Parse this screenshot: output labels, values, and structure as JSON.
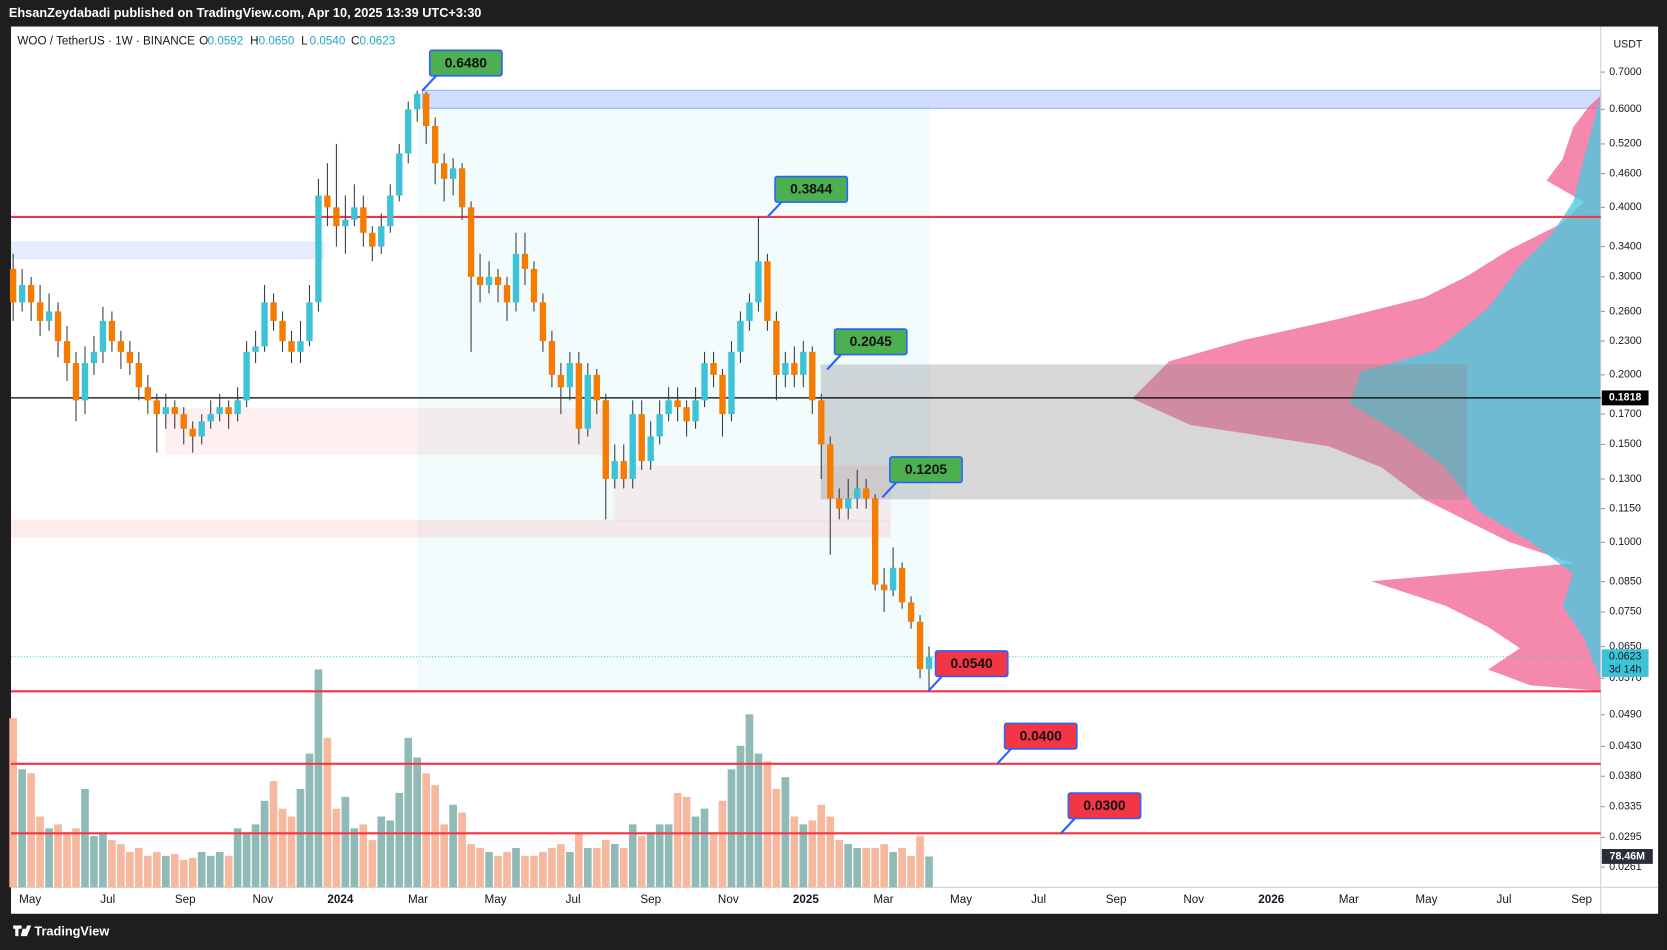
{
  "publisher": "EhsanZeydabadi published on TradingView.com, Apr 10, 2025 13:39 UTC+3:30",
  "footer": "TradingView",
  "chart_data": {
    "type": "candlestick",
    "title": "WOO / TetherUS · 1W · BINANCE",
    "ohlc_legend": [
      {
        "key": "O",
        "text": "0.0592"
      },
      {
        "key": "H",
        "text": "0.0650"
      },
      {
        "key": "L",
        "text": "0.0540"
      },
      {
        "key": "C",
        "text": "0.0623"
      }
    ],
    "y_unit": "USDT",
    "yscale": "log",
    "ylim": [
      0.024,
      0.845
    ],
    "yticks": [
      {
        "value": 0.7,
        "label": "0.7000"
      },
      {
        "value": 0.6,
        "label": "0.6000"
      },
      {
        "value": 0.52,
        "label": "0.5200"
      },
      {
        "value": 0.46,
        "label": "0.4600"
      },
      {
        "value": 0.4,
        "label": "0.4000"
      },
      {
        "value": 0.34,
        "label": "0.3400"
      },
      {
        "value": 0.3,
        "label": "0.3000"
      },
      {
        "value": 0.26,
        "label": "0.2600"
      },
      {
        "value": 0.23,
        "label": "0.2300"
      },
      {
        "value": 0.2,
        "label": "0.2000"
      },
      {
        "value": 0.17,
        "label": "0.1700"
      },
      {
        "value": 0.15,
        "label": "0.1500"
      },
      {
        "value": 0.13,
        "label": "0.1300"
      },
      {
        "value": 0.115,
        "label": "0.1150"
      },
      {
        "value": 0.1,
        "label": "0.1000"
      },
      {
        "value": 0.085,
        "label": "0.0850"
      },
      {
        "value": 0.075,
        "label": "0.0750"
      },
      {
        "value": 0.065,
        "label": "0.0650"
      },
      {
        "value": 0.057,
        "label": "0.0570"
      },
      {
        "value": 0.049,
        "label": "0.0490"
      },
      {
        "value": 0.043,
        "label": "0.0430"
      },
      {
        "value": 0.038,
        "label": "0.0380"
      },
      {
        "value": 0.0335,
        "label": "0.0335"
      },
      {
        "value": 0.0295,
        "label": "0.0295"
      },
      {
        "value": 0.0261,
        "label": "0.0261"
      }
    ],
    "time_labels": [
      "May",
      "Jul",
      "Sep",
      "Nov",
      "2024",
      "Mar",
      "May",
      "Jul",
      "Sep",
      "Nov",
      "2025",
      "Mar",
      "May",
      "Jul",
      "Sep",
      "Nov",
      "2026",
      "Mar",
      "May",
      "Jul",
      "Sep"
    ],
    "up_color": "#3ec3d6",
    "down_color": "#f57c00",
    "volume_up_color": "#8fbab6",
    "volume_down_color": "#f6b89e",
    "open": [
      0.31,
      0.27,
      0.29,
      0.27,
      0.25,
      0.26,
      0.23,
      0.21,
      0.18,
      0.21,
      0.22,
      0.25,
      0.23,
      0.22,
      0.21,
      0.19,
      0.18,
      0.17,
      0.175,
      0.17,
      0.16,
      0.155,
      0.165,
      0.17,
      0.175,
      0.17,
      0.18,
      0.22,
      0.225,
      0.27,
      0.25,
      0.23,
      0.22,
      0.23,
      0.27,
      0.42,
      0.4,
      0.37,
      0.38,
      0.4,
      0.36,
      0.34,
      0.37,
      0.42,
      0.5,
      0.6,
      0.64,
      0.56,
      0.48,
      0.45,
      0.47,
      0.4,
      0.3,
      0.29,
      0.3,
      0.29,
      0.27,
      0.33,
      0.31,
      0.27,
      0.23,
      0.2,
      0.19,
      0.21,
      0.16,
      0.2,
      0.18,
      0.13,
      0.14,
      0.13,
      0.17,
      0.14,
      0.155,
      0.17,
      0.18,
      0.175,
      0.165,
      0.18,
      0.21,
      0.2,
      0.17,
      0.22,
      0.25,
      0.27,
      0.32,
      0.25,
      0.2,
      0.21,
      0.2,
      0.22,
      0.18,
      0.15,
      0.12,
      0.115,
      0.12,
      0.125,
      0.12,
      0.084,
      0.082,
      0.09,
      0.078,
      0.072,
      0.0592
    ],
    "high": [
      0.33,
      0.31,
      0.3,
      0.29,
      0.28,
      0.27,
      0.245,
      0.22,
      0.225,
      0.235,
      0.265,
      0.26,
      0.24,
      0.23,
      0.22,
      0.2,
      0.185,
      0.185,
      0.18,
      0.175,
      0.165,
      0.17,
      0.18,
      0.185,
      0.18,
      0.19,
      0.23,
      0.24,
      0.29,
      0.28,
      0.26,
      0.24,
      0.25,
      0.29,
      0.45,
      0.48,
      0.52,
      0.42,
      0.44,
      0.42,
      0.37,
      0.39,
      0.44,
      0.52,
      0.62,
      0.648,
      0.645,
      0.58,
      0.5,
      0.49,
      0.48,
      0.41,
      0.33,
      0.32,
      0.31,
      0.3,
      0.36,
      0.36,
      0.32,
      0.28,
      0.24,
      0.21,
      0.22,
      0.22,
      0.21,
      0.205,
      0.185,
      0.15,
      0.15,
      0.18,
      0.18,
      0.165,
      0.18,
      0.19,
      0.19,
      0.18,
      0.19,
      0.22,
      0.22,
      0.205,
      0.23,
      0.26,
      0.28,
      0.3844,
      0.33,
      0.26,
      0.22,
      0.225,
      0.23,
      0.225,
      0.185,
      0.155,
      0.125,
      0.13,
      0.135,
      0.13,
      0.122,
      0.09,
      0.098,
      0.092,
      0.08,
      0.074,
      0.065
    ],
    "low": [
      0.25,
      0.26,
      0.25,
      0.235,
      0.24,
      0.215,
      0.195,
      0.165,
      0.17,
      0.2,
      0.21,
      0.22,
      0.205,
      0.2,
      0.18,
      0.17,
      0.145,
      0.16,
      0.16,
      0.15,
      0.145,
      0.15,
      0.16,
      0.165,
      0.16,
      0.165,
      0.175,
      0.21,
      0.22,
      0.24,
      0.22,
      0.21,
      0.21,
      0.225,
      0.26,
      0.37,
      0.34,
      0.33,
      0.37,
      0.34,
      0.32,
      0.33,
      0.36,
      0.41,
      0.48,
      0.57,
      0.52,
      0.44,
      0.41,
      0.42,
      0.38,
      0.22,
      0.27,
      0.28,
      0.27,
      0.25,
      0.26,
      0.29,
      0.26,
      0.22,
      0.19,
      0.17,
      0.18,
      0.15,
      0.155,
      0.17,
      0.11,
      0.125,
      0.125,
      0.125,
      0.135,
      0.135,
      0.15,
      0.165,
      0.165,
      0.155,
      0.16,
      0.175,
      0.19,
      0.155,
      0.165,
      0.21,
      0.24,
      0.26,
      0.24,
      0.18,
      0.19,
      0.19,
      0.19,
      0.17,
      0.13,
      0.095,
      0.11,
      0.11,
      0.115,
      0.115,
      0.082,
      0.075,
      0.08,
      0.076,
      0.07,
      0.057,
      0.054
    ],
    "close": [
      0.27,
      0.29,
      0.27,
      0.25,
      0.26,
      0.23,
      0.21,
      0.18,
      0.21,
      0.22,
      0.25,
      0.23,
      0.22,
      0.21,
      0.19,
      0.18,
      0.17,
      0.175,
      0.17,
      0.16,
      0.155,
      0.165,
      0.17,
      0.175,
      0.17,
      0.18,
      0.22,
      0.225,
      0.27,
      0.25,
      0.23,
      0.22,
      0.23,
      0.27,
      0.42,
      0.4,
      0.37,
      0.38,
      0.4,
      0.36,
      0.34,
      0.37,
      0.42,
      0.5,
      0.6,
      0.64,
      0.56,
      0.48,
      0.45,
      0.47,
      0.4,
      0.3,
      0.29,
      0.3,
      0.29,
      0.27,
      0.33,
      0.31,
      0.27,
      0.23,
      0.2,
      0.19,
      0.21,
      0.16,
      0.2,
      0.18,
      0.13,
      0.14,
      0.13,
      0.17,
      0.14,
      0.155,
      0.17,
      0.18,
      0.175,
      0.165,
      0.18,
      0.21,
      0.2,
      0.17,
      0.22,
      0.25,
      0.27,
      0.32,
      0.25,
      0.2,
      0.21,
      0.2,
      0.22,
      0.18,
      0.15,
      0.12,
      0.115,
      0.12,
      0.125,
      0.12,
      0.084,
      0.082,
      0.09,
      0.078,
      0.072,
      0.0592,
      0.0623
    ],
    "volume": [
      430,
      300,
      290,
      180,
      150,
      160,
      140,
      150,
      250,
      130,
      140,
      120,
      110,
      90,
      100,
      80,
      90,
      80,
      85,
      70,
      75,
      90,
      80,
      90,
      80,
      150,
      140,
      160,
      220,
      270,
      200,
      180,
      250,
      340,
      554,
      380,
      200,
      230,
      150,
      160,
      120,
      180,
      170,
      240,
      380,
      330,
      290,
      260,
      160,
      210,
      190,
      110,
      100,
      90,
      80,
      90,
      100,
      80,
      80,
      90,
      100,
      110,
      90,
      140,
      100,
      100,
      120,
      110,
      100,
      160,
      130,
      140,
      160,
      160,
      240,
      230,
      180,
      200,
      140,
      220,
      300,
      360,
      440,
      340,
      320,
      250,
      280,
      180,
      160,
      170,
      210,
      180,
      120,
      110,
      100,
      100,
      100,
      110,
      90,
      100,
      80,
      130,
      78.46
    ],
    "volume_label": "78.46M",
    "last_price": {
      "value": 0.0623,
      "label": "0.0623",
      "countdown": "3d 14h"
    },
    "hlines": [
      {
        "value": 0.3844,
        "color": "#f23645"
      },
      {
        "value": 0.1818,
        "color": "#000000",
        "label": "0.1818"
      },
      {
        "value": 0.054,
        "color": "#f23645"
      },
      {
        "value": 0.04,
        "color": "#f23645"
      },
      {
        "value": 0.03,
        "color": "#f23645"
      }
    ],
    "annotations": [
      {
        "value": 0.648,
        "label": "0.6480",
        "color": "#4caf50"
      },
      {
        "value": 0.3844,
        "label": "0.3844",
        "color": "#4caf50"
      },
      {
        "value": 0.2045,
        "label": "0.2045",
        "color": "#4caf50"
      },
      {
        "value": 0.1205,
        "label": "0.1205",
        "color": "#4caf50"
      },
      {
        "value": 0.054,
        "label": "0.0540",
        "color": "#f23645"
      },
      {
        "value": 0.04,
        "label": "0.0400",
        "color": "#f23645"
      },
      {
        "value": 0.03,
        "label": "0.0300",
        "color": "#f23645"
      }
    ]
  }
}
